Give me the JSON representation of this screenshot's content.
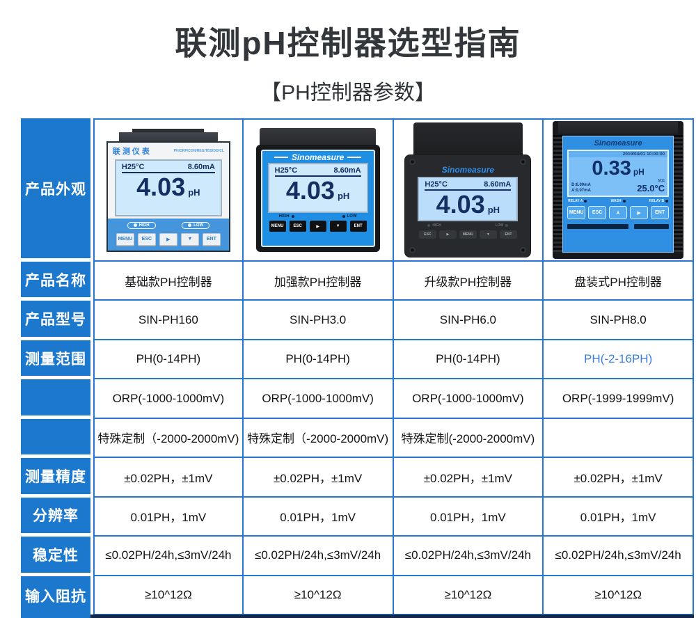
{
  "page": {
    "title": "联测pH控制器选型指南",
    "subtitle": "【PH控制器参数】"
  },
  "colors": {
    "header_blue": "#1c78cc",
    "border_blue": "#2478d2",
    "highlight_text_blue": "#3b7fd9",
    "bottom_bar_navy": "#14294a"
  },
  "table": {
    "appearance_header": "产品外观",
    "rows": [
      {
        "header": "产品名称",
        "cells": [
          "基础款PH控制器",
          "加强款PH控制器",
          "升级款PH控制器",
          "盘装式PH控制器"
        ]
      },
      {
        "header": "产品型号",
        "cells": [
          "SIN-PH160",
          "SIN-PH3.0",
          "SIN-PH6.0",
          "SIN-PH8.0"
        ]
      },
      {
        "header": "测量范围",
        "cells": [
          "PH(0-14PH)",
          "PH(0-14PH)",
          "PH(0-14PH)",
          "PH(-2-16PH)"
        ]
      },
      {
        "header": "",
        "cells": [
          "ORP(-1000-1000mV)",
          "ORP(-1000-1000mV)",
          "ORP(-1000-1000mV)",
          "ORP(-1999-1999mV)"
        ]
      },
      {
        "header": "",
        "cells": [
          "特殊定制（-2000-2000mV)",
          "特殊定制（-2000-2000mV)",
          "特殊定制(-2000-2000mV)",
          ""
        ]
      },
      {
        "header": "测量精度",
        "cells": [
          "±0.02PH，±1mV",
          "±0.02PH，±1mV",
          "±0.02PH，±1mV",
          "±0.02PH，±1mV"
        ]
      },
      {
        "header": "分辨率",
        "cells": [
          "0.01PH，1mV",
          "0.01PH，1mV",
          "0.01PH，1mV",
          "0.01PH，1mV"
        ]
      },
      {
        "header": "稳定性",
        "cells": [
          "≤0.02PH/24h,≤3mV/24h",
          "≤0.02PH/24h,≤3mV/24h",
          "≤0.02PH/24h,≤3mV/24h",
          "≤0.02PH/24h,≤3mV/24h"
        ]
      },
      {
        "header": "输入阻抗",
        "cells": [
          "≥10^12Ω",
          "≥10^12Ω",
          "≥10^12Ω",
          "≥10^12Ω"
        ]
      }
    ]
  },
  "devices": [
    {
      "brand": "联测仪表",
      "brand_right": "PH/ORP/CON/REG/TDS/DO/CL",
      "lcd": {
        "temp": "H25°C",
        "current": "8.60mA",
        "value": "4.03",
        "unit": "pH"
      },
      "indicators": [
        "HIGH",
        "LOW"
      ],
      "buttons": [
        "MENU",
        "ESC",
        "▶",
        "▼",
        "ENT"
      ]
    },
    {
      "brand": "Sinomeasure",
      "lcd": {
        "temp": "H25°C",
        "current": "8.60mA",
        "value": "4.03",
        "unit": "pH"
      },
      "indicators": [
        "HIGH",
        "LOW"
      ],
      "buttons": [
        "MENU",
        "ESC",
        "▶",
        "▼",
        "ENT"
      ]
    },
    {
      "brand": "Sinomeasure",
      "lcd": {
        "temp": "H25°C",
        "current": "8.60mA",
        "value": "4.03",
        "unit": "pH"
      },
      "indicators": [
        "HIGH",
        "LOW"
      ],
      "buttons": [
        "ESC",
        "▶",
        "MENU",
        "▼",
        "ENT"
      ]
    },
    {
      "brand": "Sinomeasure",
      "lcd": {
        "datetime": "2019/04/01 10:00:00",
        "value": "0.33",
        "unit": "pH",
        "mode": "M11",
        "temp": "25.0°C",
        "out_d": "D:6.00mA",
        "out_a": "A:0.07mA"
      },
      "indicators": [
        "RELAY A",
        "WASH",
        "RELAY B"
      ],
      "buttons": [
        "MENU",
        "ESC",
        "▲",
        "▶",
        "ENT"
      ]
    }
  ]
}
